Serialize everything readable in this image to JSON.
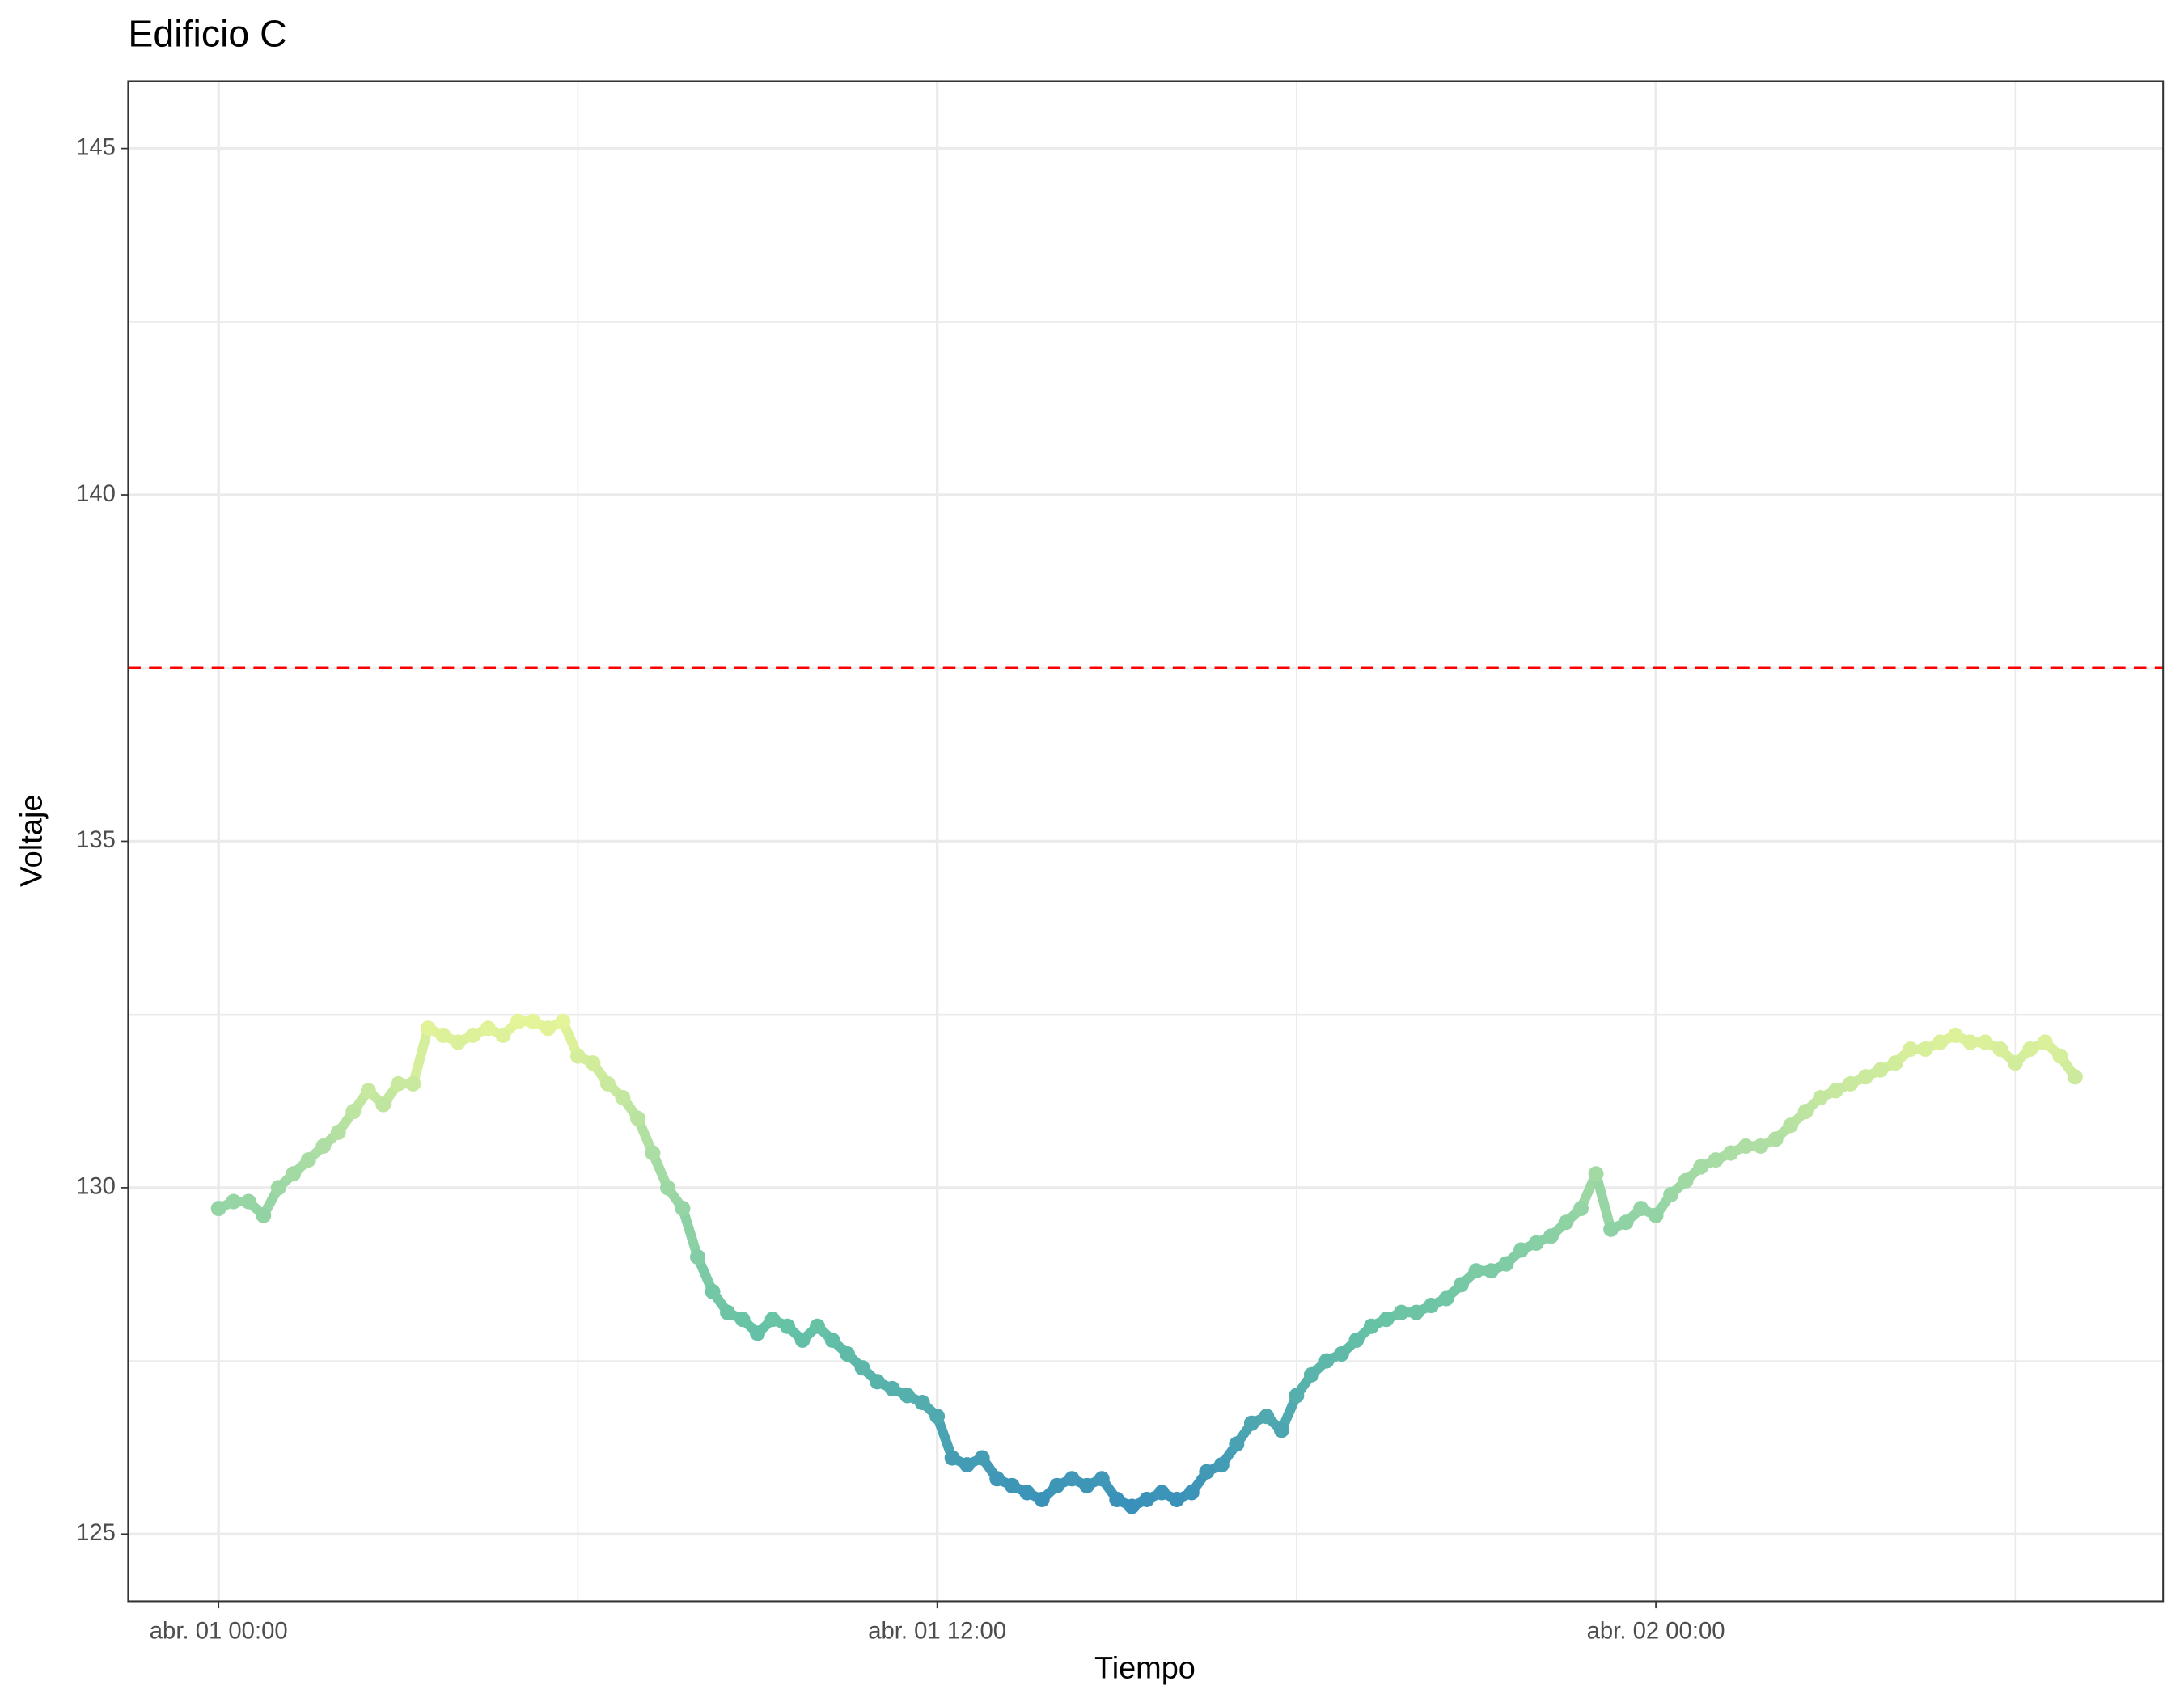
{
  "chart_data": {
    "type": "line",
    "title": "Edificio C",
    "x_label": "Tiempo",
    "y_label": "Voltaje",
    "x": [
      0,
      0.25,
      0.5,
      0.75,
      1,
      1.25,
      1.5,
      1.75,
      2,
      2.25,
      2.5,
      2.75,
      3,
      3.25,
      3.5,
      3.75,
      4,
      4.25,
      4.5,
      4.75,
      5,
      5.25,
      5.5,
      5.75,
      6,
      6.25,
      6.5,
      6.75,
      7,
      7.25,
      7.5,
      7.75,
      8,
      8.25,
      8.5,
      8.75,
      9,
      9.25,
      9.5,
      9.75,
      10,
      10.25,
      10.5,
      10.75,
      11,
      11.25,
      11.5,
      11.75,
      12,
      12.25,
      12.5,
      12.75,
      13,
      13.25,
      13.5,
      13.75,
      14,
      14.25,
      14.5,
      14.75,
      15,
      15.25,
      15.5,
      15.75,
      16,
      16.25,
      16.5,
      16.75,
      17,
      17.25,
      17.5,
      17.75,
      18,
      18.25,
      18.5,
      18.75,
      19,
      19.25,
      19.5,
      19.75,
      20,
      20.25,
      20.5,
      20.75,
      21,
      21.25,
      21.5,
      21.75,
      22,
      22.25,
      22.5,
      22.75,
      23,
      23.25,
      23.5,
      23.75,
      24,
      24.25,
      24.5,
      24.75,
      25,
      25.25,
      25.5,
      25.75,
      26,
      26.25,
      26.5,
      26.75,
      27,
      27.25,
      27.5,
      27.75,
      28,
      28.25,
      28.5,
      28.75,
      29,
      29.25,
      29.5,
      29.75,
      30,
      30.25,
      30.5,
      30.75,
      31
    ],
    "series": [
      {
        "name": "Voltaje",
        "values": [
          129.7,
          129.8,
          129.8,
          129.6,
          130.0,
          130.2,
          130.4,
          130.6,
          130.8,
          131.1,
          131.4,
          131.2,
          131.5,
          131.5,
          132.3,
          132.2,
          132.1,
          132.2,
          132.3,
          132.2,
          132.4,
          132.4,
          132.3,
          132.4,
          131.9,
          131.8,
          131.5,
          131.3,
          131.0,
          130.5,
          130.0,
          129.7,
          129.0,
          128.5,
          128.2,
          128.1,
          127.9,
          128.1,
          128.0,
          127.8,
          128.0,
          127.8,
          127.6,
          127.4,
          127.2,
          127.1,
          127.0,
          126.9,
          126.7,
          126.1,
          126.0,
          126.1,
          125.8,
          125.7,
          125.6,
          125.5,
          125.7,
          125.8,
          125.7,
          125.8,
          125.5,
          125.4,
          125.5,
          125.6,
          125.5,
          125.6,
          125.9,
          126.0,
          126.3,
          126.6,
          126.7,
          126.5,
          127.0,
          127.3,
          127.5,
          127.6,
          127.8,
          128.0,
          128.1,
          128.2,
          128.2,
          128.3,
          128.4,
          128.6,
          128.8,
          128.8,
          128.9,
          129.1,
          129.2,
          129.3,
          129.5,
          129.7,
          130.2,
          129.4,
          129.5,
          129.7,
          129.6,
          129.9,
          130.1,
          130.3,
          130.4,
          130.5,
          130.6,
          130.6,
          130.7,
          130.9,
          131.1,
          131.3,
          131.4,
          131.5,
          131.6,
          131.7,
          131.8,
          132.0,
          132.0,
          132.1,
          132.2,
          132.1,
          132.1,
          132.0,
          131.8,
          132.0,
          132.1,
          131.9,
          131.6
        ]
      }
    ],
    "color_scale": [
      {
        "value": 125,
        "color": "#3288bd"
      },
      {
        "value": 128,
        "color": "#66c2a5"
      },
      {
        "value": 130.5,
        "color": "#abdda4"
      },
      {
        "value": 132.5,
        "color": "#e6f598"
      }
    ],
    "xlim": [
      -1.51,
      32.47
    ],
    "xticks": [
      {
        "value": 0,
        "label": "abr. 01 00:00"
      },
      {
        "value": 12,
        "label": "abr. 01 12:00"
      },
      {
        "value": 24,
        "label": "abr. 02 00:00"
      }
    ],
    "minor_xticks": [
      6,
      18,
      30
    ],
    "ylim": [
      124.03,
      145.97
    ],
    "yticks": [
      125,
      130,
      135,
      140,
      145
    ],
    "minor_yticks": [
      127.5,
      132.5,
      137.5,
      142.5
    ],
    "hline": {
      "value": 137.5,
      "color": "#ff0000"
    },
    "grid": true
  }
}
